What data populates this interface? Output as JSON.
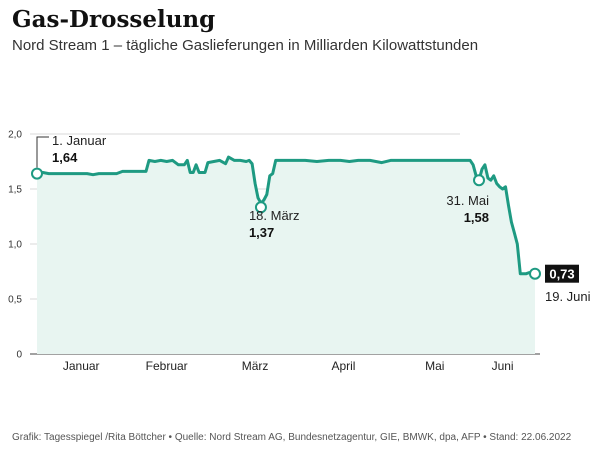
{
  "chart_data": {
    "type": "area",
    "title": "Gas-Drosselung",
    "subtitle": "Nord Stream 1 – tägliche Gaslieferungen in Milliarden Kilowattstunden",
    "xlabel": "",
    "ylabel": "",
    "x_domain": [
      "2022-01-01",
      "2022-06-19"
    ],
    "ylim": [
      0,
      2.0
    ],
    "yticks": [
      0,
      0.5,
      1.0,
      1.5,
      2.0
    ],
    "ytick_labels": [
      "0",
      "0,5",
      "1,0",
      "1,5",
      "2,0"
    ],
    "months": [
      {
        "label": "Januar",
        "date": "2022-01-16"
      },
      {
        "label": "Februar",
        "date": "2022-02-14"
      },
      {
        "label": "März",
        "date": "2022-03-16"
      },
      {
        "label": "April",
        "date": "2022-04-15"
      },
      {
        "label": "Mai",
        "date": "2022-05-16"
      },
      {
        "label": "Juni",
        "date": "2022-06-08"
      }
    ],
    "series": [
      {
        "color": "#1e9a82",
        "fill": "#e8f5f1",
        "points": [
          [
            "2022-01-01",
            1.64
          ],
          [
            "2022-01-03",
            1.65
          ],
          [
            "2022-01-05",
            1.64
          ],
          [
            "2022-01-07",
            1.64
          ],
          [
            "2022-01-10",
            1.64
          ],
          [
            "2022-01-13",
            1.64
          ],
          [
            "2022-01-15",
            1.64
          ],
          [
            "2022-01-18",
            1.64
          ],
          [
            "2022-01-20",
            1.63
          ],
          [
            "2022-01-22",
            1.64
          ],
          [
            "2022-01-25",
            1.64
          ],
          [
            "2022-01-28",
            1.64
          ],
          [
            "2022-01-30",
            1.66
          ],
          [
            "2022-02-02",
            1.66
          ],
          [
            "2022-02-05",
            1.66
          ],
          [
            "2022-02-07",
            1.66
          ],
          [
            "2022-02-08",
            1.76
          ],
          [
            "2022-02-10",
            1.75
          ],
          [
            "2022-02-12",
            1.76
          ],
          [
            "2022-02-14",
            1.75
          ],
          [
            "2022-02-16",
            1.76
          ],
          [
            "2022-02-18",
            1.72
          ],
          [
            "2022-02-20",
            1.72
          ],
          [
            "2022-02-21",
            1.76
          ],
          [
            "2022-02-22",
            1.65
          ],
          [
            "2022-02-23",
            1.65
          ],
          [
            "2022-02-24",
            1.72
          ],
          [
            "2022-02-25",
            1.65
          ],
          [
            "2022-02-27",
            1.65
          ],
          [
            "2022-02-28",
            1.74
          ],
          [
            "2022-03-02",
            1.75
          ],
          [
            "2022-03-04",
            1.76
          ],
          [
            "2022-03-06",
            1.73
          ],
          [
            "2022-03-07",
            1.79
          ],
          [
            "2022-03-09",
            1.76
          ],
          [
            "2022-03-11",
            1.76
          ],
          [
            "2022-03-13",
            1.75
          ],
          [
            "2022-03-14",
            1.76
          ],
          [
            "2022-03-15",
            1.73
          ],
          [
            "2022-03-16",
            1.55
          ],
          [
            "2022-03-17",
            1.42
          ],
          [
            "2022-03-18",
            1.37
          ],
          [
            "2022-03-19",
            1.4
          ],
          [
            "2022-03-20",
            1.45
          ],
          [
            "2022-03-21",
            1.62
          ],
          [
            "2022-03-22",
            1.64
          ],
          [
            "2022-03-23",
            1.76
          ],
          [
            "2022-03-26",
            1.76
          ],
          [
            "2022-03-30",
            1.76
          ],
          [
            "2022-04-02",
            1.76
          ],
          [
            "2022-04-06",
            1.75
          ],
          [
            "2022-04-10",
            1.76
          ],
          [
            "2022-04-14",
            1.76
          ],
          [
            "2022-04-17",
            1.75
          ],
          [
            "2022-04-20",
            1.76
          ],
          [
            "2022-04-24",
            1.76
          ],
          [
            "2022-04-28",
            1.74
          ],
          [
            "2022-05-01",
            1.76
          ],
          [
            "2022-05-05",
            1.76
          ],
          [
            "2022-05-10",
            1.76
          ],
          [
            "2022-05-14",
            1.76
          ],
          [
            "2022-05-18",
            1.76
          ],
          [
            "2022-05-22",
            1.76
          ],
          [
            "2022-05-25",
            1.76
          ],
          [
            "2022-05-27",
            1.76
          ],
          [
            "2022-05-28",
            1.76
          ],
          [
            "2022-05-29",
            1.72
          ],
          [
            "2022-05-30",
            1.62
          ],
          [
            "2022-05-31",
            1.58
          ],
          [
            "2022-06-01",
            1.68
          ],
          [
            "2022-06-02",
            1.72
          ],
          [
            "2022-06-03",
            1.6
          ],
          [
            "2022-06-04",
            1.58
          ],
          [
            "2022-06-05",
            1.62
          ],
          [
            "2022-06-06",
            1.55
          ],
          [
            "2022-06-07",
            1.52
          ],
          [
            "2022-06-08",
            1.5
          ],
          [
            "2022-06-09",
            1.52
          ],
          [
            "2022-06-10",
            1.35
          ],
          [
            "2022-06-11",
            1.2
          ],
          [
            "2022-06-12",
            1.1
          ],
          [
            "2022-06-13",
            1.0
          ],
          [
            "2022-06-14",
            0.73
          ],
          [
            "2022-06-16",
            0.73
          ],
          [
            "2022-06-17",
            0.74
          ],
          [
            "2022-06-19",
            0.73
          ]
        ]
      }
    ],
    "annotations": [
      {
        "date": "2022-01-01",
        "value": 1.64,
        "label": "1. Januar",
        "value_label": "1,64"
      },
      {
        "date": "2022-03-18",
        "value": 1.37,
        "label": "18. März",
        "value_label": "1,37"
      },
      {
        "date": "2022-05-31",
        "value": 1.58,
        "label": "31. Mai",
        "value_label": "1,58"
      },
      {
        "date": "2022-06-19",
        "value": 0.73,
        "label": "19. Juni",
        "value_label": "0,73"
      }
    ],
    "grid": true
  },
  "source": "Grafik: Tagesspiegel /Rita Böttcher • Quelle: Nord Stream AG, Bundesnetzagentur, GIE, BMWK, dpa, AFP • Stand: 22.06.2022"
}
